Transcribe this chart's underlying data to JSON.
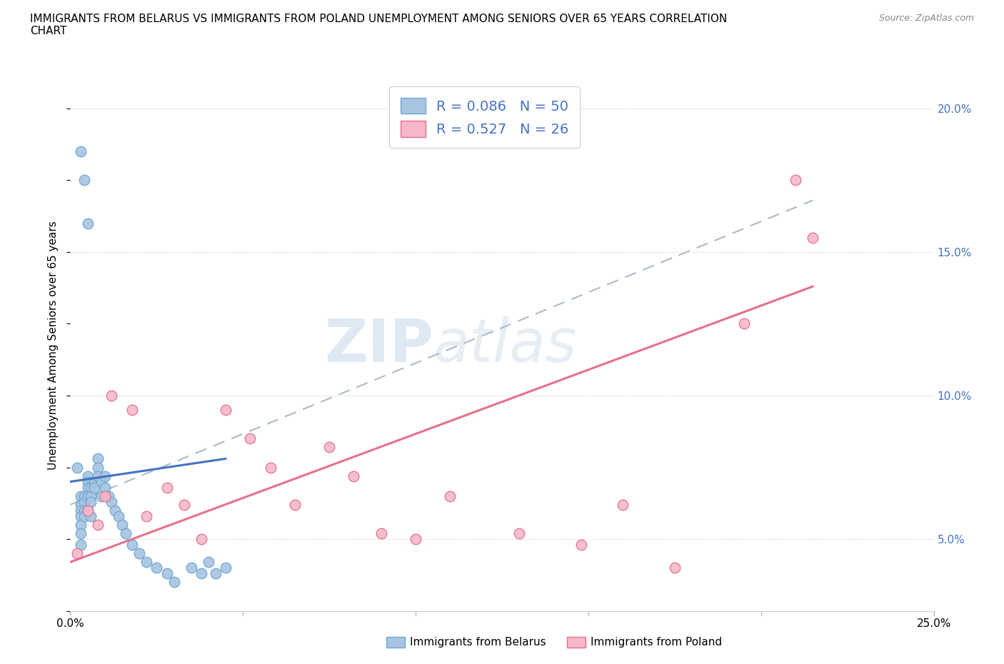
{
  "title": "IMMIGRANTS FROM BELARUS VS IMMIGRANTS FROM POLAND UNEMPLOYMENT AMONG SENIORS OVER 65 YEARS CORRELATION\nCHART",
  "source": "Source: ZipAtlas.com",
  "ylabel": "Unemployment Among Seniors over 65 years",
  "xlim": [
    0.0,
    0.25
  ],
  "ylim": [
    0.025,
    0.21
  ],
  "yticks": [
    0.05,
    0.1,
    0.15,
    0.2
  ],
  "ytick_labels": [
    "5.0%",
    "10.0%",
    "15.0%",
    "20.0%"
  ],
  "xticks": [
    0.0,
    0.05,
    0.1,
    0.15,
    0.2,
    0.25
  ],
  "xtick_labels": [
    "0.0%",
    "",
    "",
    "",
    "",
    "25.0%"
  ],
  "belarus_color": "#a8c4e0",
  "belarus_edge": "#6fa8d4",
  "poland_color": "#f4b8c8",
  "poland_edge": "#e8708c",
  "belarus_R": 0.086,
  "belarus_N": 50,
  "poland_R": 0.527,
  "poland_N": 26,
  "legend_text_color": "#4472c4",
  "watermark_zip": "ZIP",
  "watermark_atlas": "atlas",
  "belarus_x": [
    0.002,
    0.003,
    0.003,
    0.003,
    0.003,
    0.003,
    0.003,
    0.003,
    0.004,
    0.004,
    0.004,
    0.004,
    0.005,
    0.005,
    0.005,
    0.005,
    0.005,
    0.006,
    0.006,
    0.006,
    0.006,
    0.007,
    0.007,
    0.008,
    0.008,
    0.008,
    0.009,
    0.009,
    0.01,
    0.01,
    0.011,
    0.012,
    0.013,
    0.014,
    0.015,
    0.016,
    0.018,
    0.02,
    0.022,
    0.025,
    0.028,
    0.03,
    0.035,
    0.038,
    0.04,
    0.042,
    0.045,
    0.003,
    0.004,
    0.005
  ],
  "belarus_y": [
    0.075,
    0.065,
    0.062,
    0.06,
    0.058,
    0.055,
    0.052,
    0.048,
    0.065,
    0.063,
    0.06,
    0.058,
    0.072,
    0.07,
    0.068,
    0.065,
    0.06,
    0.068,
    0.065,
    0.063,
    0.058,
    0.07,
    0.068,
    0.078,
    0.075,
    0.072,
    0.07,
    0.065,
    0.072,
    0.068,
    0.065,
    0.063,
    0.06,
    0.058,
    0.055,
    0.052,
    0.048,
    0.045,
    0.042,
    0.04,
    0.038,
    0.035,
    0.04,
    0.038,
    0.042,
    0.038,
    0.04,
    0.185,
    0.175,
    0.16
  ],
  "poland_x": [
    0.002,
    0.005,
    0.008,
    0.01,
    0.012,
    0.018,
    0.022,
    0.028,
    0.033,
    0.038,
    0.045,
    0.052,
    0.058,
    0.065,
    0.075,
    0.082,
    0.09,
    0.1,
    0.11,
    0.13,
    0.148,
    0.16,
    0.175,
    0.195,
    0.21,
    0.215
  ],
  "poland_y": [
    0.045,
    0.06,
    0.055,
    0.065,
    0.1,
    0.095,
    0.058,
    0.068,
    0.062,
    0.05,
    0.095,
    0.085,
    0.075,
    0.062,
    0.082,
    0.072,
    0.052,
    0.05,
    0.065,
    0.052,
    0.048,
    0.062,
    0.04,
    0.125,
    0.175,
    0.155
  ],
  "belarus_line_x": [
    0.0,
    0.045
  ],
  "belarus_line_y": [
    0.07,
    0.078
  ],
  "poland_line_x": [
    0.0,
    0.215
  ],
  "poland_line_y": [
    0.042,
    0.138
  ],
  "dashed_line_x": [
    0.0,
    0.215
  ],
  "dashed_line_y": [
    0.062,
    0.168
  ]
}
